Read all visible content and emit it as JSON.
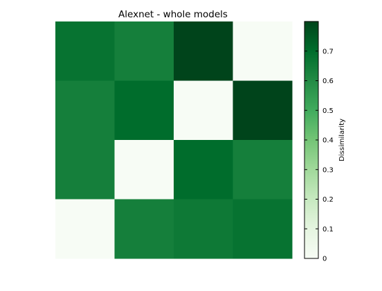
{
  "chart_data": {
    "type": "heatmap",
    "title": "Alexnet - whole models",
    "rows": 4,
    "cols": 4,
    "values": [
      [
        0.68,
        0.64,
        0.8,
        0.0
      ],
      [
        0.64,
        0.7,
        0.0,
        0.8
      ],
      [
        0.64,
        0.0,
        0.7,
        0.64
      ],
      [
        0.0,
        0.64,
        0.66,
        0.68
      ]
    ],
    "colorbar": {
      "label": "Dissimilarity",
      "min": 0,
      "max": 0.8,
      "ticks": [
        0,
        0.1,
        0.2,
        0.3,
        0.4,
        0.5,
        0.6,
        0.7
      ],
      "tick_labels": [
        "0",
        "0.1",
        "0.2",
        "0.3",
        "0.4",
        "0.5",
        "0.6",
        "0.7"
      ],
      "colormap": "Greens"
    },
    "axes_visible": false
  }
}
